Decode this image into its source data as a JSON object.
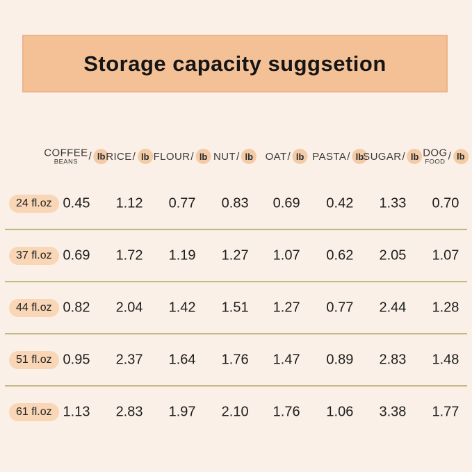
{
  "title": "Storage capacity suggsetion",
  "colors": {
    "background": "#FAF0E7",
    "banner": "#F4C197",
    "banner_border": "#EDB488",
    "divider": "#C9B78C",
    "pill_background": "#F8D6B6",
    "unit_badge_background": "#F3CBA6",
    "text": "#1C1C1C"
  },
  "table": {
    "separator": "/",
    "unit": "lb",
    "columns": [
      {
        "label": "COFFEE",
        "sublabel": "BEANS"
      },
      {
        "label": "RICE"
      },
      {
        "label": "FLOUR"
      },
      {
        "label": "NUT"
      },
      {
        "label": "OAT"
      },
      {
        "label": "PASTA"
      },
      {
        "label": "SUGAR"
      },
      {
        "label": "DOG",
        "sublabel": "FOOD"
      }
    ],
    "rows": [
      {
        "size": "24 fl.oz",
        "values": [
          "0.45",
          "1.12",
          "0.77",
          "0.83",
          "0.69",
          "0.42",
          "1.33",
          "0.70"
        ]
      },
      {
        "size": "37 fl.oz",
        "values": [
          "0.69",
          "1.72",
          "1.19",
          "1.27",
          "1.07",
          "0.62",
          "2.05",
          "1.07"
        ]
      },
      {
        "size": "44 fl.oz",
        "values": [
          "0.82",
          "2.04",
          "1.42",
          "1.51",
          "1.27",
          "0.77",
          "2.44",
          "1.28"
        ]
      },
      {
        "size": "51 fl.oz",
        "values": [
          "0.95",
          "2.37",
          "1.64",
          "1.76",
          "1.47",
          "0.89",
          "2.83",
          "1.48"
        ]
      },
      {
        "size": "61 fl.oz",
        "values": [
          "1.13",
          "2.83",
          "1.97",
          "2.10",
          "1.76",
          "1.06",
          "3.38",
          "1.77"
        ]
      }
    ]
  },
  "chart_data": {
    "type": "table",
    "title": "Storage capacity suggsetion",
    "unit": "lb",
    "categories": [
      "COFFEE BEANS",
      "RICE",
      "FLOUR",
      "NUT",
      "OAT",
      "PASTA",
      "SUGAR",
      "DOG FOOD"
    ],
    "row_labels": [
      "24 fl.oz",
      "37 fl.oz",
      "44 fl.oz",
      "51 fl.oz",
      "61 fl.oz"
    ],
    "series": [
      {
        "name": "24 fl.oz",
        "values": [
          0.45,
          1.12,
          0.77,
          0.83,
          0.69,
          0.42,
          1.33,
          0.7
        ]
      },
      {
        "name": "37 fl.oz",
        "values": [
          0.69,
          1.72,
          1.19,
          1.27,
          1.07,
          0.62,
          2.05,
          1.07
        ]
      },
      {
        "name": "44 fl.oz",
        "values": [
          0.82,
          2.04,
          1.42,
          1.51,
          1.27,
          0.77,
          2.44,
          1.28
        ]
      },
      {
        "name": "51 fl.oz",
        "values": [
          0.95,
          2.37,
          1.64,
          1.76,
          1.47,
          0.89,
          2.83,
          1.48
        ]
      },
      {
        "name": "61 fl.oz",
        "values": [
          1.13,
          2.83,
          1.97,
          2.1,
          1.76,
          1.06,
          3.38,
          1.77
        ]
      }
    ]
  }
}
